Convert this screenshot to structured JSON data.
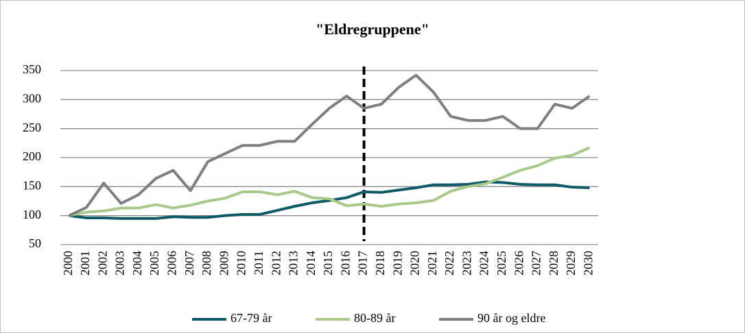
{
  "chart_data": {
    "type": "line",
    "title": "\"Eldregruppene\"",
    "categories": [
      "2000",
      "2001",
      "2002",
      "2003",
      "2004",
      "2005",
      "2006",
      "2007",
      "2008",
      "2009",
      "2010",
      "2011",
      "2012",
      "2013",
      "2014",
      "2015",
      "2016",
      "2017",
      "2018",
      "2019",
      "2020",
      "2021",
      "2022",
      "2023",
      "2024",
      "2025",
      "2026",
      "2027",
      "2028",
      "2029",
      "2030"
    ],
    "series": [
      {
        "name": "67-79 år",
        "color": "#0e5b66",
        "values": [
          100,
          96,
          96,
          95,
          95,
          95,
          98,
          97,
          97,
          100,
          102,
          102,
          109,
          116,
          122,
          126,
          131,
          141,
          140,
          144,
          148,
          153,
          153,
          154,
          158,
          157,
          154,
          153,
          153,
          149,
          148
        ]
      },
      {
        "name": "80-89 år",
        "color": "#a8c98a",
        "values": [
          100,
          106,
          108,
          113,
          113,
          119,
          113,
          118,
          125,
          130,
          141,
          141,
          136,
          142,
          131,
          129,
          117,
          120,
          116,
          120,
          122,
          126,
          142,
          150,
          155,
          166,
          178,
          186,
          199,
          204,
          217
        ]
      },
      {
        "name": "90 år og eldre",
        "color": "#7f7f7f",
        "values": [
          100,
          114,
          156,
          121,
          136,
          164,
          178,
          143,
          193,
          207,
          221,
          221,
          228,
          228,
          257,
          285,
          306,
          285,
          292,
          321,
          342,
          313,
          271,
          264,
          264,
          271,
          250,
          250,
          292,
          285,
          306
        ]
      }
    ],
    "ylim": [
      50,
      350
    ],
    "yticks": [
      50,
      100,
      150,
      200,
      250,
      300,
      350
    ],
    "grid": true,
    "vertical_line": "2017",
    "legend": "bottom"
  }
}
